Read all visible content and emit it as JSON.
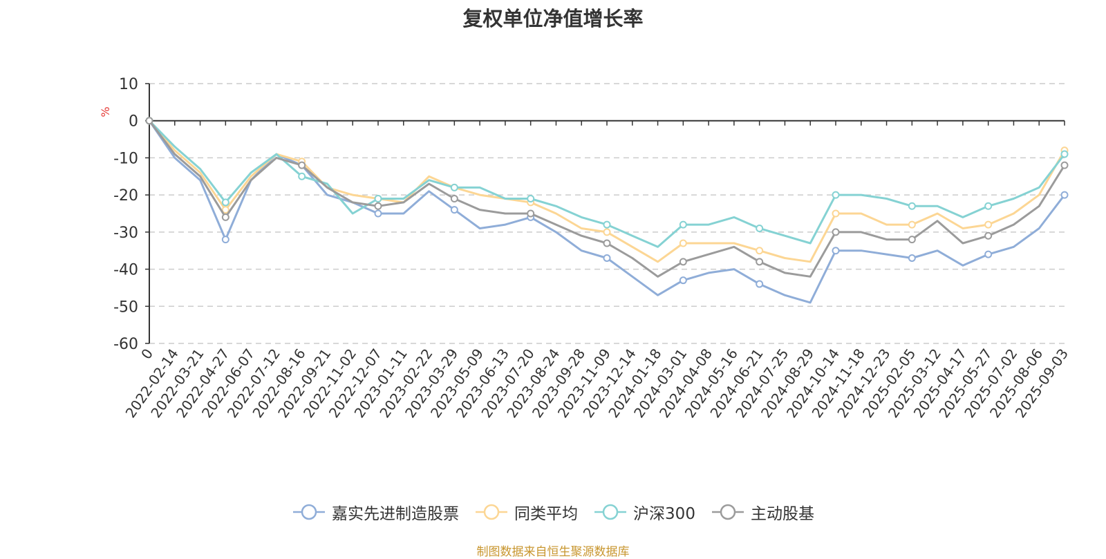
{
  "title": "复权单位净值增长率",
  "source": "制图数据来自恒生聚源数据库",
  "chart_data": {
    "type": "line",
    "ylabel": "%",
    "ylim": [
      -60,
      10
    ],
    "yticks": [
      10,
      0,
      -10,
      -20,
      -30,
      -40,
      -50,
      -60
    ],
    "grid": "horizontal dashed",
    "legend_position": "bottom",
    "x_labels": [
      "0",
      "2022-02-14",
      "2022-03-21",
      "2022-04-27",
      "2022-06-07",
      "2022-07-12",
      "2022-08-16",
      "2022-09-21",
      "2022-11-02",
      "2022-12-07",
      "2023-01-11",
      "2023-02-22",
      "2023-03-29",
      "2023-05-09",
      "2023-06-13",
      "2023-07-20",
      "2023-08-24",
      "2023-09-28",
      "2023-11-09",
      "2023-12-14",
      "2024-01-18",
      "2024-03-01",
      "2024-04-08",
      "2024-05-16",
      "2024-06-21",
      "2024-07-25",
      "2024-08-29",
      "2024-10-14",
      "2024-11-18",
      "2024-12-23",
      "2025-02-05",
      "2025-03-12",
      "2025-04-17",
      "2025-05-27",
      "2025-07-02",
      "2025-08-06",
      "2025-09-03"
    ],
    "series": [
      {
        "name": "嘉实先进制造股票",
        "color": "#8fadd8",
        "values": [
          0,
          -10,
          -16,
          -32,
          -16,
          -9,
          -12,
          -20,
          -22,
          -25,
          -25,
          -19,
          -24,
          -29,
          -28,
          -26,
          -30,
          -35,
          -37,
          -42,
          -47,
          -43,
          -41,
          -40,
          -44,
          -47,
          -49,
          -35,
          -35,
          -36,
          -37,
          -35,
          -39,
          -36,
          -34,
          -29,
          -20
        ]
      },
      {
        "name": "同类平均",
        "color": "#fcd694",
        "values": [
          0,
          -8,
          -14,
          -24,
          -15,
          -9,
          -11,
          -18,
          -20,
          -21,
          -22,
          -15,
          -18,
          -20,
          -21,
          -22,
          -25,
          -29,
          -30,
          -34,
          -38,
          -33,
          -33,
          -33,
          -35,
          -37,
          -38,
          -25,
          -25,
          -28,
          -28,
          -25,
          -29,
          -28,
          -25,
          -20,
          -8
        ]
      },
      {
        "name": "沪深300",
        "color": "#85d2d3",
        "values": [
          0,
          -7,
          -13,
          -22,
          -14,
          -9,
          -15,
          -17,
          -25,
          -21,
          -21,
          -16,
          -18,
          -18,
          -21,
          -21,
          -23,
          -26,
          -28,
          -31,
          -34,
          -28,
          -28,
          -26,
          -29,
          -31,
          -33,
          -20,
          -20,
          -21,
          -23,
          -23,
          -26,
          -23,
          -21,
          -18,
          -9
        ]
      },
      {
        "name": "主动股基",
        "color": "#9b9b9b",
        "values": [
          0,
          -9,
          -15,
          -26,
          -16,
          -10,
          -12,
          -18,
          -22,
          -23,
          -22,
          -17,
          -21,
          -24,
          -25,
          -25,
          -28,
          -31,
          -33,
          -37,
          -42,
          -38,
          -36,
          -34,
          -38,
          -41,
          -42,
          -30,
          -30,
          -32,
          -32,
          -27,
          -33,
          -31,
          -28,
          -23,
          -12
        ]
      }
    ]
  }
}
